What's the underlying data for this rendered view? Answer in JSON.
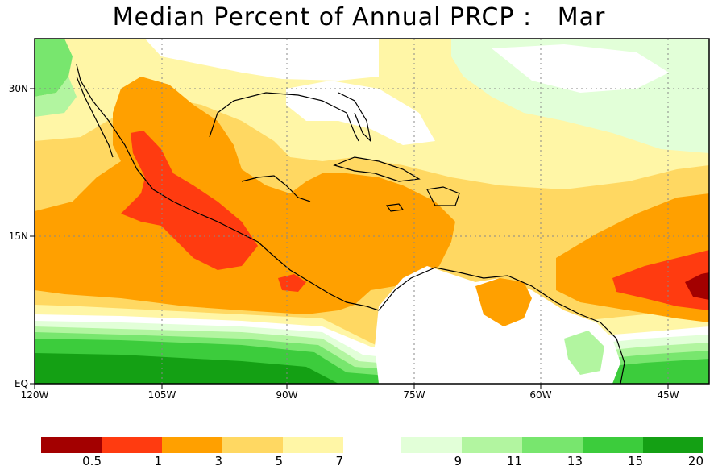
{
  "title": "Median Percent of Annual PRCP :   Mar",
  "map": {
    "lon_ticks": [
      "120W",
      "105W",
      "90W",
      "75W",
      "60W",
      "45W"
    ],
    "lat_ticks": [
      "30N",
      "15N",
      "EQ"
    ],
    "colors": {
      "dark_red": "#a30000",
      "red": "#ff3b10",
      "orange": "#ffa000",
      "gold": "#ffd862",
      "light_yellow": "#fff6a6",
      "white": "#ffffff",
      "pale_green": "#e2ffd8",
      "light_green": "#b2f5a0",
      "medium_green": "#78e66e",
      "green": "#3ccc3c",
      "dark_green": "#14a014"
    }
  },
  "legend": {
    "warm": {
      "colors": [
        "#a30000",
        "#ff3b10",
        "#ffa000",
        "#ffd862",
        "#fff6a6"
      ],
      "labels": [
        "0.5",
        "1",
        "3",
        "5",
        "7"
      ]
    },
    "cool": {
      "colors": [
        "#e2ffd8",
        "#b2f5a0",
        "#78e66e",
        "#3ccc3c",
        "#14a014"
      ],
      "labels": [
        "9",
        "11",
        "13",
        "15",
        "20"
      ]
    }
  }
}
